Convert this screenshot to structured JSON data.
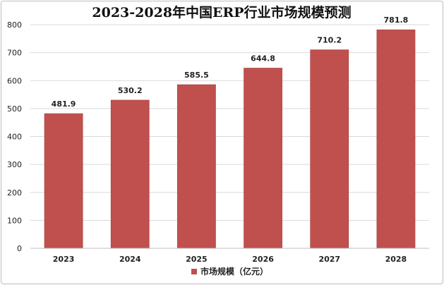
{
  "chart_data": {
    "type": "bar",
    "title": "2023-2028年中国ERP行业市场规模预测",
    "categories": [
      "2023",
      "2024",
      "2025",
      "2026",
      "2027",
      "2028"
    ],
    "series": [
      {
        "name": "市场规模（亿元）",
        "values": [
          481.9,
          530.2,
          585.5,
          644.8,
          710.2,
          781.8
        ]
      }
    ],
    "data_labels": [
      "481.9",
      "530.2",
      "585.5",
      "644.8",
      "710.2",
      "781.8"
    ],
    "y_ticks": [
      "0",
      "100",
      "200",
      "300",
      "400",
      "500",
      "600",
      "700",
      "800"
    ],
    "ylim": [
      0,
      800
    ],
    "grid": true,
    "legend_position": "bottom",
    "bar_color": "#c0504d"
  }
}
